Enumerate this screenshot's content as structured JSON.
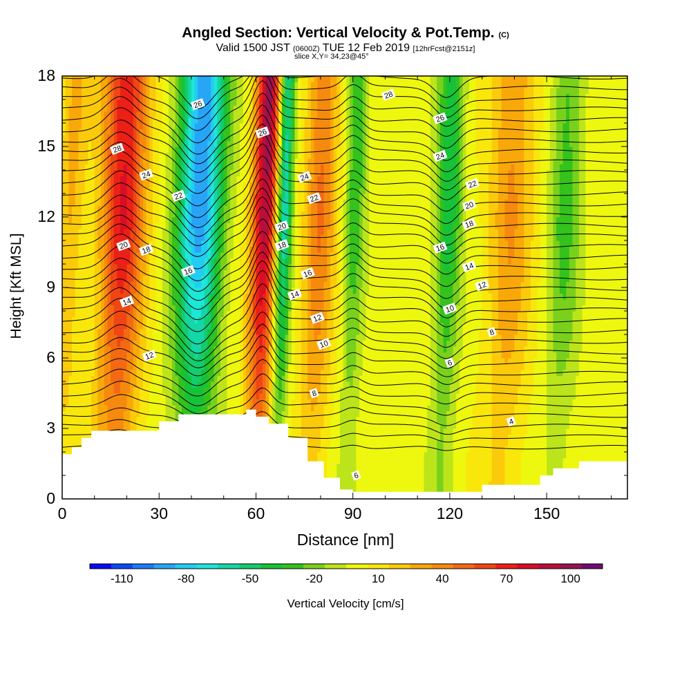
{
  "title": {
    "main": "Angled Section: Vertical Velocity & Pot.Temp.",
    "copyright": "(C)"
  },
  "subtitle": {
    "valid": "Valid 1500 JST",
    "zulu": "(0600Z)",
    "date": "TUE 12 Feb 2019",
    "forecast": "[12hrFcst@2151z]",
    "slice": "slice X,Y= 34,23@45°"
  },
  "colorbar": {
    "title": "Vertical Velocity [cm/s]",
    "tick_labels": [
      "-110",
      "-80",
      "-50",
      "-20",
      "10",
      "40",
      "70",
      "100"
    ],
    "tick_values": [
      -110,
      -80,
      -50,
      -20,
      10,
      40,
      70,
      100
    ],
    "levels": [
      -120,
      -110,
      -100,
      -90,
      -80,
      -70,
      -60,
      -50,
      -40,
      -30,
      -20,
      -10,
      0,
      10,
      20,
      30,
      40,
      50,
      60,
      70,
      80,
      90,
      100,
      110,
      120
    ],
    "colors": [
      "#0a0af0",
      "#0a4af5",
      "#1a7cf6",
      "#27a5f7",
      "#23ccf2",
      "#1ee6d8",
      "#14d6a6",
      "#14cc6c",
      "#16c238",
      "#34c21c",
      "#7ad11c",
      "#bce41a",
      "#eef70e",
      "#f9e70c",
      "#fbca0a",
      "#f9a80a",
      "#f68a0e",
      "#f36a12",
      "#ef4614",
      "#eb2016",
      "#d80e26",
      "#b90e3a",
      "#951450",
      "#6f0e70"
    ]
  },
  "chart_data": {
    "type": "heatmap",
    "title": "Angled Section: Vertical Velocity & Pot.Temp.",
    "xlabel": "Distance [nm]",
    "ylabel": "Height [Kft MSL]",
    "xlim": [
      0,
      175
    ],
    "ylim": [
      0,
      18
    ],
    "x_ticks": [
      0,
      30,
      60,
      90,
      120,
      150
    ],
    "y_ticks": [
      0,
      3,
      6,
      9,
      12,
      15,
      18
    ],
    "field": "Vertical Velocity [cm/s]",
    "updraft_bands": [
      {
        "x": 18,
        "width": 7,
        "peak": 75
      },
      {
        "x": 62,
        "width": 4,
        "peak": 95
      },
      {
        "x": 79,
        "width": 5,
        "peak": 45
      },
      {
        "x": 138,
        "width": 7,
        "peak": 35
      },
      {
        "x": 2,
        "width": 4,
        "peak": 25
      }
    ],
    "downdraft_bands": [
      {
        "x": 42,
        "width": 7,
        "peak": -95
      },
      {
        "x": 68,
        "width": 2.5,
        "peak": -70
      },
      {
        "x": 119,
        "width": 4,
        "peak": -45
      },
      {
        "x": 90,
        "width": 3,
        "peak": -35
      },
      {
        "x": 155,
        "width": 5,
        "peak": -30
      }
    ],
    "terrain_kft": [
      [
        0,
        1.9
      ],
      [
        3,
        2.2
      ],
      [
        6,
        2.6
      ],
      [
        9,
        2.9
      ],
      [
        24,
        2.9
      ],
      [
        30,
        3.3
      ],
      [
        36,
        3.6
      ],
      [
        52,
        3.6
      ],
      [
        57,
        3.8
      ],
      [
        60,
        3.5
      ],
      [
        64,
        3.2
      ],
      [
        70,
        2.6
      ],
      [
        76,
        1.6
      ],
      [
        81,
        0.9
      ],
      [
        86,
        0.4
      ],
      [
        90,
        0.3
      ],
      [
        110,
        0.3
      ],
      [
        130,
        0.6
      ],
      [
        140,
        0.6
      ],
      [
        148,
        1.0
      ],
      [
        152,
        1.3
      ],
      [
        160,
        1.6
      ],
      [
        175,
        1.6
      ]
    ],
    "isentrope_labels": [
      {
        "text": "28",
        "x": 17,
        "y": 14.9
      },
      {
        "text": "24",
        "x": 26,
        "y": 13.8
      },
      {
        "text": "22",
        "x": 36,
        "y": 12.9
      },
      {
        "text": "20",
        "x": 19,
        "y": 10.8
      },
      {
        "text": "18",
        "x": 26,
        "y": 10.6
      },
      {
        "text": "16",
        "x": 39,
        "y": 9.7
      },
      {
        "text": "14",
        "x": 20,
        "y": 8.4
      },
      {
        "text": "12",
        "x": 27,
        "y": 6.1
      },
      {
        "text": "26",
        "x": 42,
        "y": 16.8
      },
      {
        "text": "26",
        "x": 62,
        "y": 15.6
      },
      {
        "text": "24",
        "x": 75,
        "y": 13.7
      },
      {
        "text": "22",
        "x": 78,
        "y": 12.8
      },
      {
        "text": "20",
        "x": 68,
        "y": 11.6
      },
      {
        "text": "18",
        "x": 68,
        "y": 10.8
      },
      {
        "text": "16",
        "x": 76,
        "y": 9.6
      },
      {
        "text": "14",
        "x": 72,
        "y": 8.7
      },
      {
        "text": "12",
        "x": 79,
        "y": 7.7
      },
      {
        "text": "10",
        "x": 81,
        "y": 6.6
      },
      {
        "text": "8",
        "x": 78,
        "y": 4.5
      },
      {
        "text": "6",
        "x": 91,
        "y": 1.0
      },
      {
        "text": "28",
        "x": 101,
        "y": 17.2
      },
      {
        "text": "26",
        "x": 117,
        "y": 16.2
      },
      {
        "text": "24",
        "x": 117,
        "y": 14.6
      },
      {
        "text": "22",
        "x": 127,
        "y": 13.4
      },
      {
        "text": "20",
        "x": 126,
        "y": 12.5
      },
      {
        "text": "18",
        "x": 126,
        "y": 11.7
      },
      {
        "text": "16",
        "x": 117,
        "y": 10.7
      },
      {
        "text": "14",
        "x": 126,
        "y": 9.9
      },
      {
        "text": "12",
        "x": 130,
        "y": 9.1
      },
      {
        "text": "10",
        "x": 120,
        "y": 8.1
      },
      {
        "text": "8",
        "x": 133,
        "y": 7.1
      },
      {
        "text": "6",
        "x": 120,
        "y": 5.8
      },
      {
        "text": "4",
        "x": 139,
        "y": 3.3
      }
    ]
  }
}
